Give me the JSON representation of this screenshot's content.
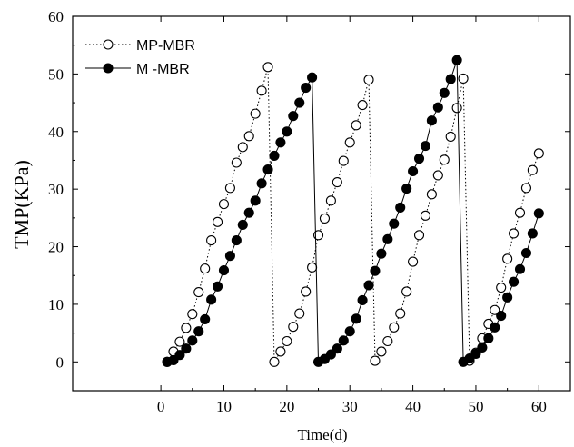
{
  "chart_data": {
    "type": "line",
    "title": "",
    "xlabel": "Time(d)",
    "ylabel": "TMP(KPa)",
    "xlim": [
      -14,
      65
    ],
    "ylim": [
      -5,
      60
    ],
    "xticks": [
      0,
      10,
      20,
      30,
      40,
      50,
      60
    ],
    "yticks": [
      0,
      10,
      20,
      30,
      40,
      50,
      60
    ],
    "grid": false,
    "legend_position": "top-left",
    "series": [
      {
        "name": "MP-MBR",
        "marker": "open-circle",
        "line_style": "dotted",
        "color": "#000000",
        "x": [
          1,
          2,
          3,
          4,
          5,
          6,
          7,
          8,
          9,
          10,
          11,
          12,
          13,
          14,
          15,
          16,
          17,
          18,
          19,
          20,
          21,
          22,
          23,
          24,
          25,
          26,
          27,
          28,
          29,
          30,
          31,
          32,
          33,
          34,
          35,
          36,
          37,
          38,
          39,
          40,
          41,
          42,
          43,
          44,
          45,
          46,
          47,
          48,
          49,
          50,
          51,
          52,
          53,
          54,
          55,
          56,
          57,
          58,
          59,
          60
        ],
        "y": [
          0,
          1.8,
          3.5,
          5.9,
          8.3,
          12.1,
          16.2,
          21.1,
          24.3,
          27.4,
          30.2,
          34.6,
          37.3,
          39.2,
          43.1,
          47.1,
          51.2,
          0,
          1.8,
          3.6,
          6.1,
          8.4,
          12.2,
          16.4,
          22,
          24.9,
          28,
          31.2,
          34.9,
          38.1,
          41.1,
          44.6,
          49,
          0.2,
          1.8,
          3.6,
          6,
          8.4,
          12.2,
          17.4,
          22,
          25.4,
          29.1,
          32.4,
          35.1,
          39.1,
          44.1,
          49.2,
          0.2,
          1.6,
          4.1,
          6.6,
          9,
          12.9,
          17.9,
          22.3,
          25.9,
          30.2,
          33.3,
          36.2
        ]
      },
      {
        "name": "M -MBR",
        "marker": "filled-circle",
        "line_style": "solid",
        "color": "#000000",
        "x": [
          1,
          2,
          3,
          4,
          5,
          6,
          7,
          8,
          9,
          10,
          11,
          12,
          13,
          14,
          15,
          16,
          17,
          18,
          19,
          20,
          21,
          22,
          23,
          24,
          25,
          26,
          27,
          28,
          29,
          30,
          31,
          32,
          33,
          34,
          35,
          36,
          37,
          38,
          39,
          40,
          41,
          42,
          43,
          44,
          45,
          46,
          47,
          48,
          49,
          50,
          51,
          52,
          53,
          54,
          55,
          56,
          57,
          58,
          59,
          60
        ],
        "y": [
          0,
          0.3,
          1.2,
          2.3,
          3.7,
          5.3,
          7.4,
          10.8,
          13.1,
          15.9,
          18.4,
          21.1,
          23.8,
          25.9,
          28,
          31,
          33.4,
          35.8,
          38.1,
          40,
          42.7,
          45,
          47.6,
          49.4,
          0,
          0.5,
          1.3,
          2.3,
          3.7,
          5.3,
          7.5,
          10.7,
          13.3,
          15.8,
          18.8,
          21.3,
          24,
          26.8,
          30.1,
          33.1,
          35.3,
          37.5,
          41.9,
          44.2,
          46.7,
          49.1,
          52.4,
          0,
          0.6,
          1.4,
          2.5,
          4.1,
          6,
          8,
          11.2,
          13.9,
          16.1,
          18.9,
          22.3,
          25.8
        ]
      }
    ]
  }
}
